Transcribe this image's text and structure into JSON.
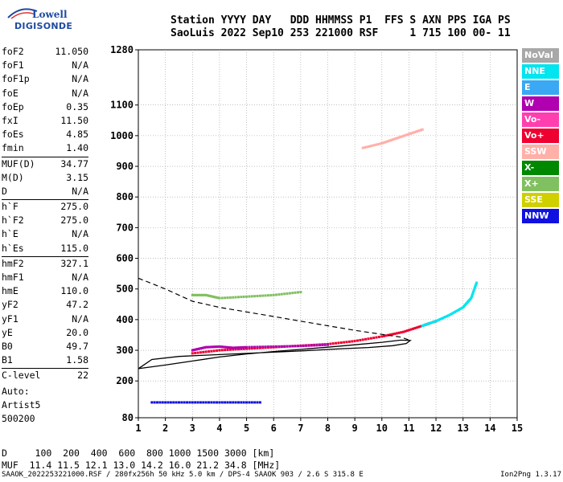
{
  "logo": {
    "line1": "Lowell",
    "line2": "DIGISONDE"
  },
  "header": {
    "line1": "Station YYYY DAY   DDD HHMMSS P1  FFS S AXN PPS IGA PS",
    "line2": "SaoLuis 2022 Sep10 253 221000 RSF     1 715 100 00- 11"
  },
  "params": {
    "group1": [
      {
        "k": "foF2",
        "v": "11.050"
      },
      {
        "k": "foF1",
        "v": "N/A"
      },
      {
        "k": "foF1p",
        "v": "N/A"
      },
      {
        "k": "foE",
        "v": "N/A"
      },
      {
        "k": "foEp",
        "v": "0.35"
      },
      {
        "k": "fxI",
        "v": "11.50"
      },
      {
        "k": "foEs",
        "v": "4.85"
      },
      {
        "k": "fmin",
        "v": "1.40"
      }
    ],
    "group2": [
      {
        "k": "MUF(D)",
        "v": "34.77"
      },
      {
        "k": "M(D)",
        "v": "3.15"
      },
      {
        "k": "D",
        "v": "N/A"
      }
    ],
    "group3": [
      {
        "k": "h`F",
        "v": "275.0"
      },
      {
        "k": "h`F2",
        "v": "275.0"
      },
      {
        "k": "h`E",
        "v": "N/A"
      },
      {
        "k": "h`Es",
        "v": "115.0"
      }
    ],
    "group4": [
      {
        "k": "hmF2",
        "v": "327.1"
      },
      {
        "k": "hmF1",
        "v": "N/A"
      },
      {
        "k": "hmE",
        "v": "110.0"
      },
      {
        "k": "yF2",
        "v": "47.2"
      },
      {
        "k": "yF1",
        "v": "N/A"
      },
      {
        "k": "yE",
        "v": "20.0"
      },
      {
        "k": "B0",
        "v": "49.7"
      },
      {
        "k": "B1",
        "v": "1.58"
      }
    ],
    "group5": [
      {
        "k": "C-level",
        "v": "22"
      }
    ]
  },
  "auto": {
    "line1": "Auto:",
    "line2": "Artist5",
    "line3": "500200"
  },
  "footer": {
    "line1": "D     100  200  400  600  800 1000 1500 3000 [km]",
    "line2": "MUF  11.4 11.5 12.1 13.0 14.2 16.0 21.2 34.8 [MHz]"
  },
  "bottom": {
    "left": "SAAOK_2022253221000.RSF / 280fx256h 50 kHz 5.0 km / DPS-4 SAAOK 903 / 2.6 S 315.8 E",
    "right": "Ion2Png 1.3.17"
  },
  "legend": [
    {
      "label": "NoVal",
      "color": "#a8a8a8"
    },
    {
      "label": "NNE",
      "color": "#00e5ee"
    },
    {
      "label": "E",
      "color": "#3aa8f2"
    },
    {
      "label": "W",
      "color": "#b000b0"
    },
    {
      "label": "Vo-",
      "color": "#ff3fb0"
    },
    {
      "label": "Vo+",
      "color": "#ee0030"
    },
    {
      "label": "SSW",
      "color": "#ffb0a8"
    },
    {
      "label": "X-",
      "color": "#008800"
    },
    {
      "label": "X+",
      "color": "#80c060"
    },
    {
      "label": "SSE",
      "color": "#d0d000"
    },
    {
      "label": "NNW",
      "color": "#1010e0"
    }
  ],
  "chart_data": {
    "type": "scatter",
    "xlim": [
      1,
      15
    ],
    "ylim": [
      80,
      1280
    ],
    "x_ticks": [
      1,
      2,
      3,
      4,
      5,
      6,
      7,
      8,
      9,
      10,
      11,
      12,
      13,
      14,
      15
    ],
    "y_ticks": [
      80,
      200,
      300,
      400,
      500,
      600,
      700,
      800,
      900,
      1000,
      1100,
      1280
    ],
    "grid": true,
    "series": [
      {
        "name": "Vo+",
        "points": [
          [
            3.0,
            290
          ],
          [
            4.0,
            300
          ],
          [
            5.0,
            305
          ],
          [
            6.0,
            310
          ],
          [
            7.0,
            315
          ],
          [
            8.0,
            320
          ],
          [
            9.0,
            330
          ],
          [
            10.0,
            345
          ],
          [
            10.8,
            360
          ],
          [
            11.5,
            380
          ],
          [
            12.0,
            395
          ]
        ]
      },
      {
        "name": "W",
        "points": [
          [
            3.0,
            300
          ],
          [
            3.5,
            310
          ],
          [
            4.0,
            312
          ],
          [
            4.5,
            308
          ],
          [
            5.0,
            310
          ],
          [
            6.0,
            312
          ],
          [
            7.0,
            314
          ],
          [
            8.0,
            318
          ]
        ]
      },
      {
        "name": "NNE",
        "points": [
          [
            11.5,
            380
          ],
          [
            12.0,
            395
          ],
          [
            12.5,
            415
          ],
          [
            13.0,
            440
          ],
          [
            13.3,
            470
          ],
          [
            13.5,
            520
          ]
        ]
      },
      {
        "name": "SSW",
        "points": [
          [
            9.3,
            960
          ],
          [
            10.0,
            975
          ],
          [
            10.5,
            990
          ],
          [
            11.0,
            1005
          ],
          [
            11.5,
            1020
          ]
        ]
      },
      {
        "name": "NNW",
        "points": [
          [
            1.5,
            130
          ],
          [
            2.5,
            130
          ],
          [
            3.5,
            130
          ],
          [
            4.5,
            130
          ],
          [
            5.5,
            130
          ]
        ]
      },
      {
        "name": "X+",
        "points": [
          [
            3.0,
            480
          ],
          [
            3.5,
            480
          ],
          [
            4.0,
            470
          ],
          [
            5.0,
            475
          ],
          [
            6.0,
            480
          ],
          [
            7.0,
            490
          ]
        ]
      }
    ],
    "profile_solid": [
      [
        1.0,
        240
      ],
      [
        2.0,
        252
      ],
      [
        3.0,
        265
      ],
      [
        4.0,
        278
      ],
      [
        5.0,
        288
      ],
      [
        6.0,
        296
      ],
      [
        7.0,
        303
      ],
      [
        8.0,
        310
      ],
      [
        9.0,
        318
      ],
      [
        10.0,
        326
      ],
      [
        10.7,
        333
      ],
      [
        11.05,
        332
      ],
      [
        10.9,
        322
      ],
      [
        10.4,
        315
      ],
      [
        9.5,
        309
      ],
      [
        8.5,
        305
      ],
      [
        7.5,
        300
      ],
      [
        6.5,
        296
      ],
      [
        5.5,
        292
      ],
      [
        4.5,
        288
      ],
      [
        3.5,
        284
      ],
      [
        2.5,
        280
      ],
      [
        1.5,
        270
      ],
      [
        1.0,
        240
      ]
    ],
    "profile_dashed": [
      [
        1.0,
        535
      ],
      [
        2.0,
        500
      ],
      [
        3.0,
        460
      ],
      [
        4.0,
        440
      ],
      [
        5.0,
        425
      ],
      [
        6.0,
        410
      ],
      [
        7.0,
        395
      ],
      [
        8.0,
        380
      ],
      [
        9.0,
        365
      ],
      [
        10.0,
        352
      ],
      [
        10.7,
        343
      ],
      [
        11.05,
        332
      ]
    ]
  }
}
